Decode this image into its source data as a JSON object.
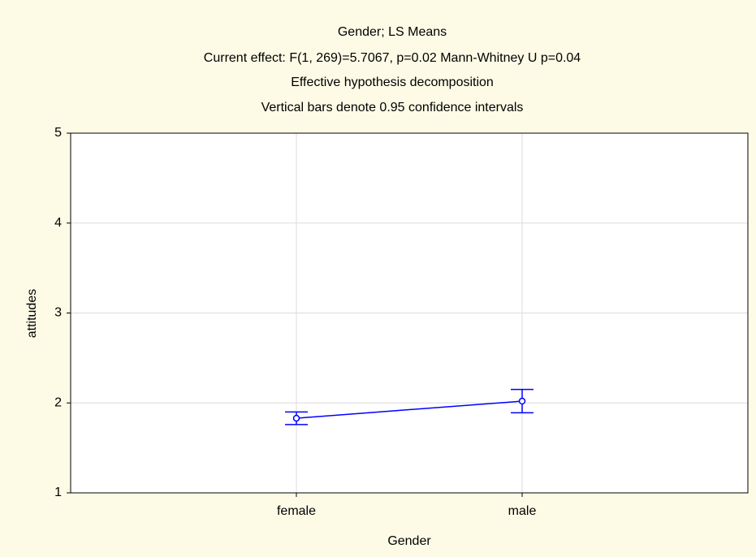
{
  "chart_data": {
    "type": "line",
    "title": "Gender; LS Means",
    "subtitles": [
      "Current effect: F(1, 269)=5.7067, p=0.02 Mann-Whitney U p=0.04",
      "Effective hypothesis decomposition",
      "Vertical bars denote 0.95 confidence intervals"
    ],
    "x_label": "Gender",
    "y_label": "attitudes",
    "categories": [
      "female",
      "male"
    ],
    "values": [
      1.83,
      2.02
    ],
    "errors": [
      0.07,
      0.13
    ],
    "color": "#0000ff",
    "ylim": [
      1,
      5
    ],
    "yticks": [
      1,
      2,
      3,
      4,
      5
    ],
    "grid": true
  }
}
